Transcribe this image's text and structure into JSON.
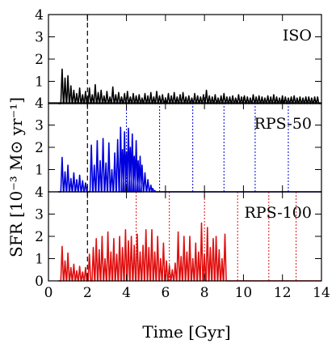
{
  "chart_data": {
    "type": "line",
    "xlabel": "Time [Gyr]",
    "ylabel": "SFR [10⁻³ M⊙ yr⁻¹]",
    "xlim": [
      0,
      14
    ],
    "ylim": [
      0,
      4
    ],
    "x_ticks": [
      "0",
      "2",
      "4",
      "6",
      "8",
      "10",
      "12",
      "14"
    ],
    "y_ticks": [
      "0",
      "1",
      "2",
      "3",
      "4"
    ],
    "grid": false,
    "panels": [
      {
        "label": "ISO",
        "color": "#000000",
        "ref_lines": [
          2.0
        ],
        "ref_color": "#000000",
        "peaks": [
          [
            0.7,
            1.55
          ],
          [
            0.85,
            1.15
          ],
          [
            1.0,
            1.25
          ],
          [
            1.15,
            0.8
          ],
          [
            1.3,
            0.6
          ],
          [
            1.45,
            0.45
          ],
          [
            1.6,
            0.7
          ],
          [
            1.75,
            0.4
          ],
          [
            1.9,
            0.55
          ],
          [
            2.1,
            0.7
          ],
          [
            2.25,
            0.4
          ],
          [
            2.4,
            0.85
          ],
          [
            2.55,
            0.5
          ],
          [
            2.7,
            0.6
          ],
          [
            2.85,
            0.35
          ],
          [
            3.0,
            0.55
          ],
          [
            3.15,
            0.3
          ],
          [
            3.3,
            0.75
          ],
          [
            3.45,
            0.4
          ],
          [
            3.6,
            0.5
          ],
          [
            3.75,
            0.3
          ],
          [
            3.9,
            0.45
          ],
          [
            4.05,
            0.55
          ],
          [
            4.2,
            0.3
          ],
          [
            4.35,
            0.45
          ],
          [
            4.5,
            0.35
          ],
          [
            4.65,
            0.4
          ],
          [
            4.8,
            0.25
          ],
          [
            4.95,
            0.45
          ],
          [
            5.1,
            0.35
          ],
          [
            5.25,
            0.5
          ],
          [
            5.4,
            0.3
          ],
          [
            5.55,
            0.55
          ],
          [
            5.7,
            0.35
          ],
          [
            5.85,
            0.4
          ],
          [
            6.0,
            0.25
          ],
          [
            6.15,
            0.45
          ],
          [
            6.3,
            0.35
          ],
          [
            6.45,
            0.5
          ],
          [
            6.6,
            0.3
          ],
          [
            6.75,
            0.4
          ],
          [
            6.9,
            0.5
          ],
          [
            7.05,
            0.3
          ],
          [
            7.2,
            0.35
          ],
          [
            7.35,
            0.25
          ],
          [
            7.5,
            0.45
          ],
          [
            7.65,
            0.35
          ],
          [
            7.8,
            0.3
          ],
          [
            7.95,
            0.4
          ],
          [
            8.1,
            0.6
          ],
          [
            8.25,
            0.35
          ],
          [
            8.4,
            0.3
          ],
          [
            8.55,
            0.4
          ],
          [
            8.7,
            0.25
          ],
          [
            8.85,
            0.35
          ],
          [
            9.0,
            0.45
          ],
          [
            9.15,
            0.3
          ],
          [
            9.3,
            0.3
          ],
          [
            9.45,
            0.35
          ],
          [
            9.6,
            0.25
          ],
          [
            9.75,
            0.4
          ],
          [
            9.9,
            0.3
          ],
          [
            10.05,
            0.35
          ],
          [
            10.2,
            0.3
          ],
          [
            10.35,
            0.25
          ],
          [
            10.5,
            0.4
          ],
          [
            10.65,
            0.3
          ],
          [
            10.8,
            0.35
          ],
          [
            10.95,
            0.3
          ],
          [
            11.1,
            0.25
          ],
          [
            11.25,
            0.35
          ],
          [
            11.4,
            0.3
          ],
          [
            11.55,
            0.4
          ],
          [
            11.7,
            0.3
          ],
          [
            11.85,
            0.25
          ],
          [
            12.0,
            0.35
          ],
          [
            12.15,
            0.3
          ],
          [
            12.3,
            0.25
          ],
          [
            12.45,
            0.3
          ],
          [
            12.6,
            0.35
          ],
          [
            12.75,
            0.25
          ],
          [
            12.9,
            0.3
          ],
          [
            13.05,
            0.25
          ],
          [
            13.2,
            0.3
          ],
          [
            13.35,
            0.3
          ],
          [
            13.5,
            0.25
          ],
          [
            13.65,
            0.3
          ],
          [
            13.8,
            0.3
          ]
        ]
      },
      {
        "label": "RPS-50",
        "color": "#0000dd",
        "ref_lines": [
          2.0,
          4.0,
          5.7,
          7.4,
          9.0,
          10.6,
          12.3
        ],
        "ref_color": "#0000dd",
        "peaks": [
          [
            0.7,
            1.55
          ],
          [
            0.85,
            0.9
          ],
          [
            1.0,
            1.2
          ],
          [
            1.15,
            0.6
          ],
          [
            1.3,
            0.85
          ],
          [
            1.45,
            0.55
          ],
          [
            1.6,
            0.75
          ],
          [
            1.75,
            0.5
          ],
          [
            1.9,
            0.4
          ],
          [
            2.2,
            2.1
          ],
          [
            2.35,
            1.2
          ],
          [
            2.5,
            2.3
          ],
          [
            2.65,
            1.4
          ],
          [
            2.8,
            2.4
          ],
          [
            2.95,
            1.3
          ],
          [
            3.1,
            2.2
          ],
          [
            3.25,
            1.0
          ],
          [
            3.4,
            1.75
          ],
          [
            3.55,
            2.35
          ],
          [
            3.7,
            2.9
          ],
          [
            3.8,
            1.9
          ],
          [
            3.9,
            2.7
          ],
          [
            4.0,
            1.8
          ],
          [
            4.1,
            2.85
          ],
          [
            4.2,
            2.0
          ],
          [
            4.3,
            2.6
          ],
          [
            4.4,
            1.6
          ],
          [
            4.5,
            2.3
          ],
          [
            4.6,
            1.4
          ],
          [
            4.7,
            1.6
          ],
          [
            4.8,
            1.2
          ],
          [
            4.95,
            0.85
          ],
          [
            5.1,
            0.55
          ],
          [
            5.25,
            0.3
          ],
          [
            5.35,
            0.15
          ],
          [
            5.45,
            0.05
          ]
        ]
      },
      {
        "label": "RPS-100",
        "color": "#e01010",
        "ref_lines": [
          2.0,
          4.5,
          6.2,
          8.0,
          9.7,
          11.3,
          12.7
        ],
        "ref_color": "#e01010",
        "peaks": [
          [
            0.7,
            1.55
          ],
          [
            0.85,
            0.9
          ],
          [
            1.0,
            1.25
          ],
          [
            1.15,
            0.6
          ],
          [
            1.3,
            0.75
          ],
          [
            1.45,
            0.45
          ],
          [
            1.6,
            0.65
          ],
          [
            1.75,
            0.4
          ],
          [
            1.9,
            0.6
          ],
          [
            2.1,
            1.2
          ],
          [
            2.3,
            1.5
          ],
          [
            2.45,
            1.9
          ],
          [
            2.6,
            1.4
          ],
          [
            2.75,
            2.0
          ],
          [
            2.9,
            1.0
          ],
          [
            3.05,
            2.2
          ],
          [
            3.2,
            1.3
          ],
          [
            3.35,
            1.9
          ],
          [
            3.5,
            1.2
          ],
          [
            3.65,
            2.0
          ],
          [
            3.8,
            1.5
          ],
          [
            3.95,
            2.3
          ],
          [
            4.1,
            1.8
          ],
          [
            4.25,
            2.0
          ],
          [
            4.4,
            1.6
          ],
          [
            4.55,
            2.1
          ],
          [
            4.7,
            1.3
          ],
          [
            4.85,
            1.6
          ],
          [
            5.0,
            2.3
          ],
          [
            5.15,
            1.5
          ],
          [
            5.3,
            2.3
          ],
          [
            5.45,
            1.3
          ],
          [
            5.6,
            2.0
          ],
          [
            5.75,
            1.0
          ],
          [
            5.9,
            1.7
          ],
          [
            6.05,
            0.9
          ],
          [
            6.2,
            0.7
          ],
          [
            6.35,
            0.5
          ],
          [
            6.5,
            0.8
          ],
          [
            6.65,
            2.2
          ],
          [
            6.8,
            1.1
          ],
          [
            6.95,
            2.0
          ],
          [
            7.1,
            1.3
          ],
          [
            7.25,
            2.0
          ],
          [
            7.4,
            1.0
          ],
          [
            7.55,
            1.7
          ],
          [
            7.7,
            1.3
          ],
          [
            7.85,
            2.6
          ],
          [
            8.0,
            1.2
          ],
          [
            8.15,
            2.4
          ],
          [
            8.3,
            1.5
          ],
          [
            8.45,
            1.9
          ],
          [
            8.6,
            2.0
          ],
          [
            8.75,
            1.4
          ],
          [
            8.9,
            1.0
          ],
          [
            9.05,
            2.1
          ]
        ]
      }
    ]
  }
}
